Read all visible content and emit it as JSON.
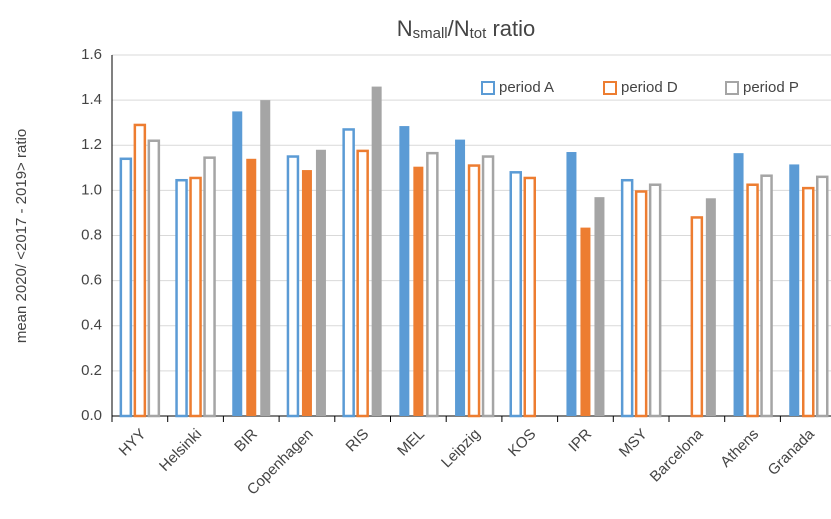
{
  "chart_data": {
    "type": "bar",
    "title": [
      {
        "text": "N"
      },
      {
        "text": "small",
        "sub": true
      },
      {
        "text": "/N"
      },
      {
        "text": "tot",
        "sub": true
      },
      {
        "text": " ratio"
      }
    ],
    "y_label": "mean 2020/ <2017 - 2019> ratio",
    "categories": [
      "HYY",
      "Helsinki",
      "BIR",
      "Copenhagen",
      "RIS",
      "MEL",
      "Leipzig",
      "KOS",
      "IPR",
      "MSY",
      "Barcelona",
      "Athens",
      "Granada"
    ],
    "series": [
      {
        "name": "period A",
        "color": "#5b9bd5",
        "values": [
          1.14,
          1.045,
          1.35,
          1.15,
          1.27,
          1.285,
          1.225,
          1.08,
          1.17,
          1.045,
          null,
          1.165,
          1.115
        ],
        "filled": [
          false,
          false,
          true,
          false,
          false,
          true,
          true,
          false,
          true,
          false,
          false,
          true,
          true
        ]
      },
      {
        "name": "period D",
        "color": "#ed7d31",
        "values": [
          1.29,
          1.055,
          1.14,
          1.09,
          1.175,
          1.105,
          1.11,
          1.055,
          0.835,
          0.995,
          0.88,
          1.025,
          1.01
        ],
        "filled": [
          false,
          false,
          true,
          true,
          false,
          true,
          false,
          false,
          true,
          false,
          false,
          false,
          false
        ]
      },
      {
        "name": "period P",
        "color": "#a5a5a5",
        "values": [
          1.22,
          1.145,
          1.4,
          1.18,
          1.46,
          1.165,
          1.15,
          null,
          0.97,
          1.025,
          0.965,
          1.065,
          1.06
        ],
        "filled": [
          false,
          false,
          true,
          true,
          true,
          false,
          false,
          false,
          true,
          false,
          true,
          false,
          false
        ]
      }
    ],
    "ylim": [
      0,
      1.6
    ],
    "yticks": [
      {
        "value": 0,
        "label": "0.0"
      },
      0.2,
      0.4,
      0.6,
      0.8,
      {
        "value": 1,
        "label": "1.0"
      },
      1.2,
      1.4,
      1.6
    ],
    "grid": true,
    "legend": "top-right"
  }
}
